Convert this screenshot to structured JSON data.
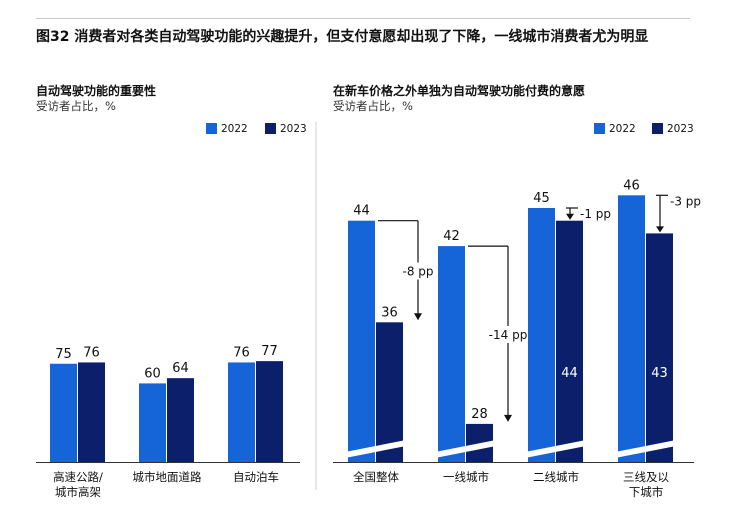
{
  "figure_title": "图32 消费者对各类自动驾驶功能的兴趣提升，但支付意愿却出现了下降，一线城市消费者尤为明显",
  "colors": {
    "y2022": "#1565d8",
    "y2023": "#0b1f6b",
    "text": "#111111",
    "axis": "#333333"
  },
  "chart_data": [
    {
      "type": "bar",
      "title": "自动驾驶功能的重要性",
      "ylabel": "受访者占比，%",
      "ylim": [
        0,
        100
      ],
      "legend_position": "top-right",
      "categories": [
        "高速公路/\n城市高架",
        "城市地面道路",
        "自动泊车"
      ],
      "series": [
        {
          "name": "2022",
          "values": [
            75,
            60,
            76
          ]
        },
        {
          "name": "2023",
          "values": [
            76,
            64,
            77
          ]
        }
      ]
    },
    {
      "type": "bar",
      "title": "在新车价格之外单独为自动驾驶功能付费的意愿",
      "ylabel": "受访者占比，%",
      "y_axis_broken": true,
      "legend_position": "top-right",
      "categories": [
        "全国整体",
        "一线城市",
        "二线城市",
        "三线及以\n下城市"
      ],
      "series": [
        {
          "name": "2022",
          "values": [
            44,
            42,
            45,
            46
          ]
        },
        {
          "name": "2023",
          "values": [
            36,
            28,
            44,
            43
          ]
        }
      ],
      "annotations": [
        "-8 pp",
        "-14 pp",
        "-1 pp",
        "-3 pp"
      ]
    }
  ]
}
